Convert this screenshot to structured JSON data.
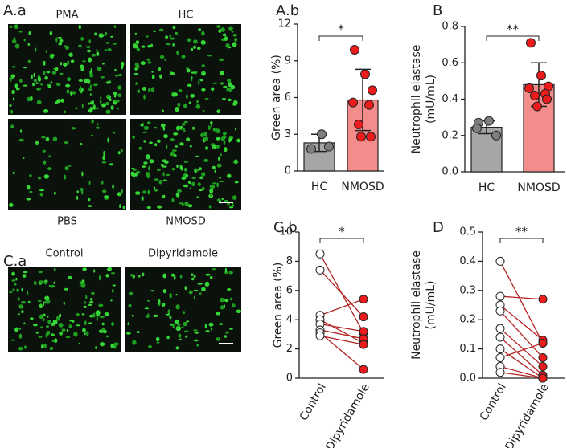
{
  "figure": {
    "panel_labels": [
      "A.a",
      "A.b",
      "B",
      "C.a",
      "C.b",
      "D"
    ],
    "images": [
      {
        "label": "PMA"
      },
      {
        "label": "HC"
      },
      {
        "label": "PBS"
      },
      {
        "label": "NMOSD"
      },
      {
        "label": "Control"
      },
      {
        "label": "Dipyridamole"
      }
    ]
  },
  "chart_data": [
    {
      "type": "bar",
      "y_label": [
        "Green area (%)"
      ],
      "categories": [
        "HC",
        "NMOSD"
      ],
      "values": [
        2.3,
        5.8
      ],
      "errors": [
        0.7,
        2.5
      ],
      "points": [
        [
          1.8,
          3.0,
          2.0
        ],
        [
          9.9,
          7.9,
          6.6,
          5.6,
          5.4,
          3.8,
          2.8,
          2.8
        ]
      ],
      "colors": [
        "#a6a6a6",
        "#f58c8c"
      ],
      "point_colors": [
        "#7f7f7f",
        "#ec1c1c"
      ],
      "ylim": [
        0,
        12
      ],
      "yticks": [
        0,
        3,
        6,
        9,
        12
      ],
      "significance": "*"
    },
    {
      "type": "bar",
      "y_label": [
        "Neutrophil elastase",
        "(mU/mL)"
      ],
      "categories": [
        "HC",
        "NMOSD"
      ],
      "values": [
        0.245,
        0.48
      ],
      "errors": [
        0.035,
        0.12
      ],
      "points": [
        [
          0.27,
          0.28,
          0.2,
          0.24
        ],
        [
          0.71,
          0.53,
          0.47,
          0.46,
          0.43,
          0.42,
          0.4,
          0.36
        ]
      ],
      "colors": [
        "#a6a6a6",
        "#f58c8c"
      ],
      "point_colors": [
        "#7f7f7f",
        "#ec1c1c"
      ],
      "ylim": [
        0,
        0.8
      ],
      "yticks": [
        {
          "value": 0,
          "label": "0.0"
        },
        0.2,
        0.4,
        0.6,
        0.8
      ],
      "significance": "**"
    },
    {
      "type": "paired",
      "y_label": [
        "Green area (%)"
      ],
      "categories": [
        "Control",
        "Dipyridamole"
      ],
      "series": [
        {
          "values": [
            8.5,
            3.1
          ]
        },
        {
          "values": [
            7.4,
            4.2
          ]
        },
        {
          "values": [
            4.3,
            5.4
          ]
        },
        {
          "values": [
            4.0,
            2.4
          ]
        },
        {
          "values": [
            3.7,
            3.2
          ]
        },
        {
          "values": [
            3.3,
            2.7
          ]
        },
        {
          "values": [
            3.1,
            0.6
          ]
        },
        {
          "values": [
            2.9,
            2.3
          ]
        }
      ],
      "point_colors": [
        "#ffffff",
        "#ec1c1c"
      ],
      "line_color": "#b22222",
      "ylim": [
        0,
        10
      ],
      "yticks": [
        0,
        2,
        4,
        6,
        8,
        10
      ],
      "significance": "*"
    },
    {
      "type": "paired",
      "y_label": [
        "Neutrophil elastase",
        "(mU/mL)"
      ],
      "categories": [
        "Control",
        "Dipyridamole"
      ],
      "series": [
        {
          "values": [
            0.4,
            0.12
          ]
        },
        {
          "values": [
            0.28,
            0.27
          ]
        },
        {
          "values": [
            0.25,
            0.13
          ]
        },
        {
          "values": [
            0.23,
            0.07
          ]
        },
        {
          "values": [
            0.17,
            0.04
          ]
        },
        {
          "values": [
            0.14,
            0.01
          ]
        },
        {
          "values": [
            0.1,
            0.0
          ]
        },
        {
          "values": [
            0.07,
            0.12
          ]
        },
        {
          "values": [
            0.04,
            0.0
          ]
        },
        {
          "values": [
            0.02,
            0.0
          ]
        }
      ],
      "point_colors": [
        "#ffffff",
        "#ec1c1c"
      ],
      "line_color": "#b22222",
      "ylim": [
        0,
        0.5
      ],
      "yticks": [
        {
          "value": 0,
          "label": "0.0"
        },
        0.1,
        0.2,
        0.3,
        0.4,
        0.5
      ],
      "significance": "**"
    }
  ]
}
